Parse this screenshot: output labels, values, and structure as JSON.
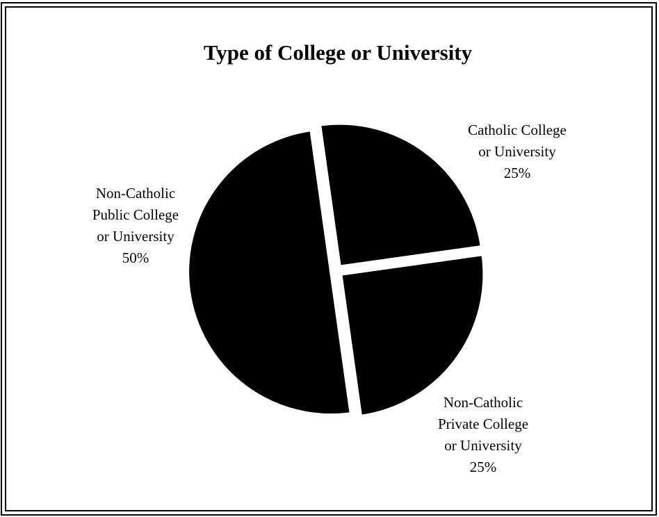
{
  "chart_data": {
    "type": "pie",
    "title": "Type of College or University",
    "slices": [
      {
        "label_lines": [
          "Catholic College",
          "or University",
          "25%"
        ],
        "value": 25
      },
      {
        "label_lines": [
          "Non-Catholic",
          "Private College",
          "or University",
          "25%"
        ],
        "value": 25
      },
      {
        "label_lines": [
          "Non-Catholic",
          "Public College",
          "or University",
          "50%"
        ],
        "value": 50
      }
    ]
  },
  "colors": {
    "slice_fill": "#000000",
    "background": "#ffffff"
  }
}
